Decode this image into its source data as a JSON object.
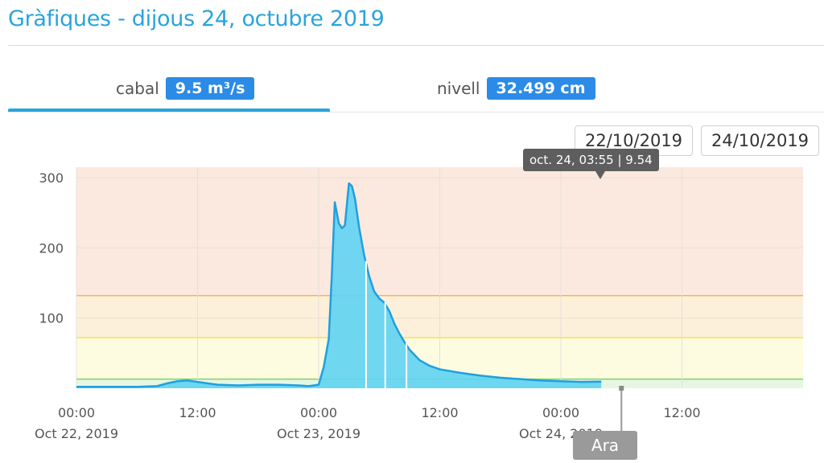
{
  "header": {
    "title": "Gràfiques - dijous 24, octubre 2019"
  },
  "tabs": [
    {
      "label": "cabal",
      "value": "9.5 m³/s",
      "active": true
    },
    {
      "label": "nivell",
      "value": "32.499 cm",
      "active": false
    }
  ],
  "date_range": {
    "from": "22/10/2019",
    "to": "24/10/2019"
  },
  "tooltip": {
    "text": "oct. 24, 03:55 | 9.54"
  },
  "now_marker": {
    "label": "Ara"
  },
  "colors": {
    "title": "#2aa4dc",
    "badge": "#2b8be6",
    "area_fill": "#5fd3f2",
    "line": "#1f9fe0",
    "band_red": "#fbe9df",
    "band_orange": "#fdf0da",
    "band_yellow": "#fdfbe0",
    "band_green": "#e5f7e3"
  },
  "chart_data": {
    "type": "area",
    "x_unit": "hours since Oct 22, 2019 00:00",
    "x": [
      0,
      6,
      8,
      9,
      10,
      11,
      12,
      14,
      16,
      18,
      20,
      22,
      23,
      24,
      24.5,
      25,
      25.3,
      25.6,
      26,
      26.3,
      26.6,
      27,
      27.3,
      27.6,
      28,
      28.5,
      29,
      29.5,
      30,
      30.5,
      31,
      31.5,
      32,
      32.5,
      33,
      34,
      35,
      36,
      38,
      40,
      42,
      44,
      46,
      48,
      50,
      52
    ],
    "y": [
      2,
      2,
      3,
      7,
      10,
      11,
      9,
      5,
      4,
      5,
      5,
      4,
      3,
      5,
      30,
      70,
      160,
      265,
      235,
      228,
      232,
      292,
      288,
      270,
      230,
      190,
      160,
      138,
      128,
      122,
      110,
      92,
      78,
      66,
      55,
      40,
      32,
      27,
      22,
      18,
      15,
      13,
      11,
      10,
      9,
      9.5
    ],
    "x_ticks": [
      {
        "x": 0,
        "time": "00:00",
        "date": "Oct 22, 2019"
      },
      {
        "x": 12,
        "time": "12:00",
        "date": ""
      },
      {
        "x": 24,
        "time": "00:00",
        "date": "Oct 23, 2019"
      },
      {
        "x": 36,
        "time": "12:00",
        "date": ""
      },
      {
        "x": 48,
        "time": "00:00",
        "date": "Oct 24, 2019"
      },
      {
        "x": 60,
        "time": "12:00",
        "date": ""
      }
    ],
    "y_ticks": [
      100,
      200,
      300
    ],
    "xlim": [
      0,
      72
    ],
    "ylim": [
      0,
      315
    ],
    "thresholds": [
      13,
      72,
      132
    ],
    "now_x": 54,
    "gaps_x": [
      28.7,
      30.6,
      32.7
    ],
    "grid": true
  }
}
